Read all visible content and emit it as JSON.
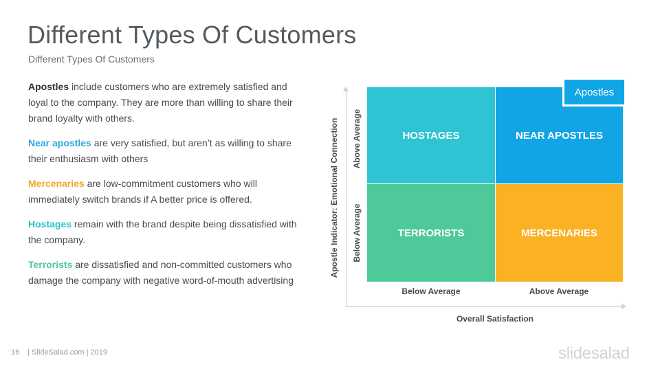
{
  "title": "Different Types Of Customers",
  "subtitle": "Different Types Of Customers",
  "descriptions": [
    {
      "term": "Apostles",
      "text": " include customers who are extremely satisfied and loyal to the company. They are more than willing to share their brand loyalty with others.",
      "color": "#333333"
    },
    {
      "term": "Near apostles",
      "text": " are very satisfied, but aren’t as willing to share their enthusiasm with others",
      "color": "#29a8dc"
    },
    {
      "term": "Mercenaries",
      "text": " are low-commitment customers who will immediately switch brands if A better price is offered.",
      "color": "#f2a92a"
    },
    {
      "term": "Hostages",
      "text": " remain with the brand despite being dissatisfied with the company.",
      "color": "#2bbfcf"
    },
    {
      "term": "Terrorists",
      "text": " are dissatisfied and non-committed customers who damage the company with negative word-of-mouth advertising",
      "color": "#4ec79a"
    }
  ],
  "matrix": {
    "quadrants": {
      "hostages": {
        "label": "HOSTAGES",
        "color": "#2ec4d3"
      },
      "near_apostles": {
        "label": "NEAR APOSTLES",
        "color": "#12a5e6"
      },
      "terrorists": {
        "label": "TERRORISTS",
        "color": "#4ec99a"
      },
      "mercenaries": {
        "label": "MERCENARIES",
        "color": "#fab224"
      }
    },
    "apostles_label": "Apostles",
    "x_levels": [
      "Below Average",
      "Above Average"
    ],
    "x_title": "Overall Satisfaction",
    "y_levels": [
      "Above Average",
      "Below Average"
    ],
    "y_title": "Apostle Indicator: Emotional Connection"
  },
  "footer": {
    "page": "16",
    "text": "| SlideSalad.com | 2019"
  },
  "brand": "slidesalad"
}
